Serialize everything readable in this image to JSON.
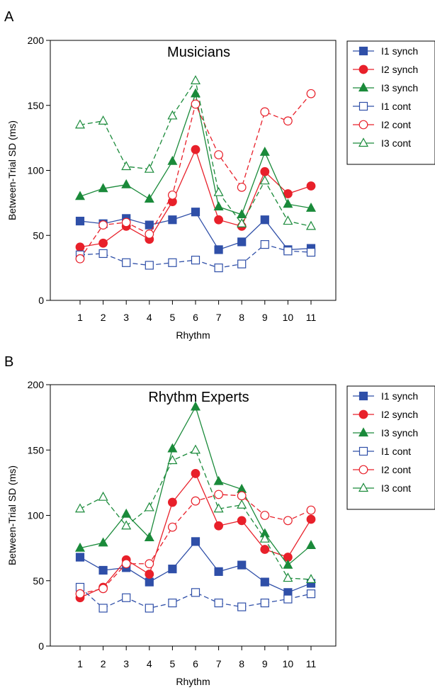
{
  "chart_data": [
    {
      "panel": "A",
      "type": "line",
      "title": "Musicians",
      "xlabel": "Rhythm",
      "ylabel": "Between-Trial SD (ms)",
      "ylim": [
        0,
        200
      ],
      "yticks": [
        0,
        50,
        100,
        150,
        200
      ],
      "x": [
        1,
        2,
        3,
        4,
        5,
        6,
        7,
        8,
        9,
        10,
        11
      ],
      "legend_position": "right",
      "series": [
        {
          "name": "I1 synch",
          "color": "#2f4fa8",
          "marker": "square",
          "filled": true,
          "dashed": false,
          "values": [
            61,
            59,
            63,
            58,
            62,
            68,
            39,
            45,
            62,
            39,
            40
          ]
        },
        {
          "name": "I2 synch",
          "color": "#e8202a",
          "marker": "circle",
          "filled": true,
          "dashed": false,
          "values": [
            41,
            44,
            57,
            47,
            76,
            116,
            62,
            57,
            99,
            82,
            88
          ]
        },
        {
          "name": "I3 synch",
          "color": "#1a8a3a",
          "marker": "triangle",
          "filled": true,
          "dashed": false,
          "values": [
            80,
            86,
            89,
            78,
            107,
            159,
            72,
            66,
            114,
            74,
            71
          ]
        },
        {
          "name": "I1 cont",
          "color": "#2f4fa8",
          "marker": "square",
          "filled": false,
          "dashed": true,
          "values": [
            35,
            36,
            29,
            27,
            29,
            31,
            25,
            28,
            43,
            38,
            37
          ]
        },
        {
          "name": "I2 cont",
          "color": "#e8202a",
          "marker": "circle",
          "filled": false,
          "dashed": true,
          "values": [
            32,
            58,
            60,
            51,
            81,
            151,
            112,
            87,
            145,
            138,
            159
          ]
        },
        {
          "name": "I3 cont",
          "color": "#1a8a3a",
          "marker": "triangle",
          "filled": false,
          "dashed": true,
          "values": [
            135,
            138,
            103,
            101,
            142,
            169,
            83,
            59,
            92,
            61,
            57
          ]
        }
      ]
    },
    {
      "panel": "B",
      "type": "line",
      "title": "Rhythm Experts",
      "xlabel": "Rhythm",
      "ylabel": "Between-Trial SD (ms)",
      "ylim": [
        0,
        200
      ],
      "yticks": [
        0,
        50,
        100,
        150,
        200
      ],
      "x": [
        1,
        2,
        3,
        4,
        5,
        6,
        7,
        8,
        9,
        10,
        11
      ],
      "legend_position": "right",
      "series": [
        {
          "name": "I1 synch",
          "color": "#2f4fa8",
          "marker": "square",
          "filled": true,
          "dashed": false,
          "values": [
            68,
            58,
            60,
            49,
            59,
            80,
            57,
            62,
            49,
            41,
            48
          ]
        },
        {
          "name": "I2 synch",
          "color": "#e8202a",
          "marker": "circle",
          "filled": true,
          "dashed": false,
          "values": [
            37,
            45,
            66,
            55,
            110,
            132,
            92,
            96,
            74,
            68,
            97
          ]
        },
        {
          "name": "I3 synch",
          "color": "#1a8a3a",
          "marker": "triangle",
          "filled": true,
          "dashed": false,
          "values": [
            75,
            79,
            101,
            83,
            151,
            183,
            126,
            120,
            86,
            62,
            77
          ]
        },
        {
          "name": "I1 cont",
          "color": "#2f4fa8",
          "marker": "square",
          "filled": false,
          "dashed": true,
          "values": [
            45,
            29,
            37,
            29,
            33,
            41,
            33,
            30,
            33,
            36,
            40
          ]
        },
        {
          "name": "I2 cont",
          "color": "#e8202a",
          "marker": "circle",
          "filled": false,
          "dashed": true,
          "values": [
            40,
            44,
            63,
            63,
            91,
            111,
            116,
            115,
            100,
            96,
            104
          ]
        },
        {
          "name": "I3 cont",
          "color": "#1a8a3a",
          "marker": "triangle",
          "filled": false,
          "dashed": true,
          "values": [
            105,
            114,
            92,
            106,
            142,
            150,
            105,
            108,
            82,
            52,
            51
          ]
        }
      ]
    }
  ]
}
